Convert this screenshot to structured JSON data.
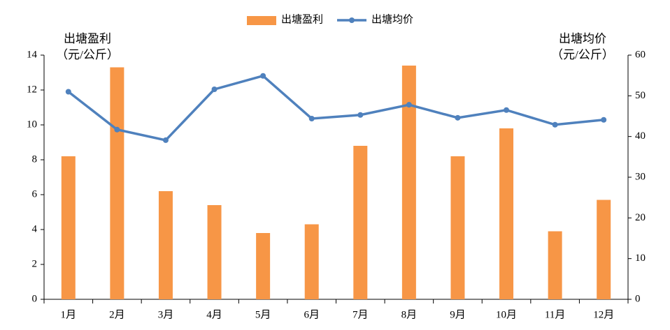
{
  "chart_data": {
    "type": "bar_line",
    "categories": [
      "1月",
      "2月",
      "3月",
      "4月",
      "5月",
      "6月",
      "7月",
      "8月",
      "9月",
      "10月",
      "11月",
      "12月"
    ],
    "series": [
      {
        "name": "出塘盈利",
        "type": "bar",
        "color": "#f79646",
        "values": [
          8.2,
          13.3,
          6.2,
          5.4,
          3.8,
          4.3,
          8.8,
          13.4,
          8.2,
          9.8,
          3.9,
          5.7
        ]
      },
      {
        "name": "出塘均价",
        "type": "line",
        "axis": "y2",
        "color": "#4f81bd",
        "values": [
          51,
          41.7,
          39.1,
          51.6,
          54.9,
          44.4,
          45.3,
          47.8,
          44.6,
          46.5,
          42.9,
          44.1
        ]
      }
    ],
    "ylabel": [
      "出塘盈利",
      "（元/公斤）"
    ],
    "y2label": [
      "出塘均价",
      "（元/公斤）"
    ],
    "ylim": [
      0,
      14
    ],
    "yticks": [
      0,
      2,
      4,
      6,
      8,
      10,
      12,
      14
    ],
    "y2lim": [
      0,
      60
    ],
    "y2ticks": [
      0,
      10,
      20,
      30,
      40,
      50,
      60
    ],
    "grid": false,
    "legend": "top"
  }
}
